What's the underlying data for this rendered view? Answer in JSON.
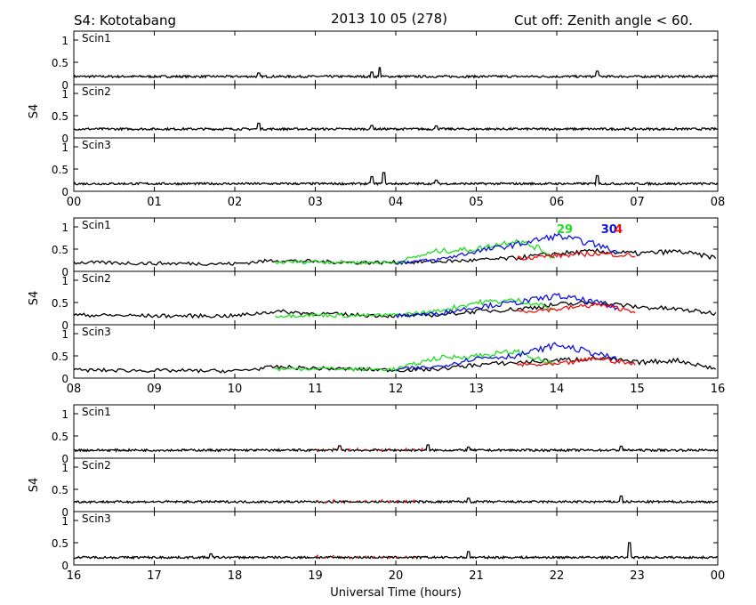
{
  "header": {
    "left": "S4: Kototabang",
    "center": "2013 10 05 (278)",
    "right": "Cut off: Zenith angle < 60."
  },
  "xlabel": "Universal Time (hours)",
  "ylabel": "S4",
  "colors": {
    "black": "#000000",
    "green": "#22dd22",
    "blue": "#1111dd",
    "red": "#ee1111",
    "purple": "#771199"
  },
  "chart_data": [
    {
      "type": "line",
      "group": 1,
      "x_ticks": [
        "00",
        "01",
        "02",
        "03",
        "04",
        "05",
        "06",
        "07",
        "08"
      ],
      "xlim": [
        0,
        8
      ],
      "panels": [
        {
          "label": "Scin1",
          "ylim": [
            0,
            1.2
          ],
          "y_ticks": [
            "1",
            "0.5",
            "0"
          ],
          "baseline": 0.18,
          "spikes": [
            [
              3.8,
              0.38
            ],
            [
              3.7,
              0.28
            ],
            [
              6.5,
              0.3
            ],
            [
              2.3,
              0.26
            ]
          ]
        },
        {
          "label": "Scin2",
          "ylim": [
            0,
            1.2
          ],
          "y_ticks": [
            "1",
            "0.5",
            "0"
          ],
          "baseline": 0.2,
          "spikes": [
            [
              2.3,
              0.33
            ],
            [
              3.7,
              0.28
            ],
            [
              4.5,
              0.27
            ]
          ]
        },
        {
          "label": "Scin3",
          "ylim": [
            0,
            1.2
          ],
          "y_ticks": [
            "1",
            "0.5",
            "0"
          ],
          "baseline": 0.17,
          "spikes": [
            [
              3.7,
              0.33
            ],
            [
              3.85,
              0.42
            ],
            [
              6.5,
              0.35
            ],
            [
              4.5,
              0.25
            ]
          ]
        }
      ]
    },
    {
      "type": "line",
      "group": 2,
      "x_ticks": [
        "08",
        "09",
        "10",
        "11",
        "12",
        "13",
        "14",
        "15",
        "16"
      ],
      "xlim": [
        8,
        16
      ],
      "annotations": [
        {
          "text": "29",
          "x": 14.0,
          "y": 0.92,
          "color": "green"
        },
        {
          "text": "30",
          "x": 14.55,
          "y": 0.92,
          "color": "blue"
        },
        {
          "text": "4",
          "x": 14.72,
          "y": 0.92,
          "color": "red"
        }
      ],
      "panels": [
        {
          "label": "Scin1",
          "ylim": [
            0,
            1.2
          ],
          "y_ticks": [
            "1",
            "0.5",
            "0"
          ],
          "series": [
            {
              "color": "black",
              "points": [
                [
                  8,
                  0.2
                ],
                [
                  9,
                  0.18
                ],
                [
                  10,
                  0.17
                ],
                [
                  10.5,
                  0.25
                ],
                [
                  11,
                  0.22
                ],
                [
                  11.5,
                  0.2
                ],
                [
                  12,
                  0.2
                ],
                [
                  12.5,
                  0.22
                ],
                [
                  13,
                  0.25
                ],
                [
                  13.5,
                  0.3
                ],
                [
                  14,
                  0.4
                ],
                [
                  14.5,
                  0.45
                ],
                [
                  15,
                  0.4
                ],
                [
                  15.5,
                  0.45
                ],
                [
                  16,
                  0.3
                ]
              ]
            },
            {
              "color": "green",
              "points": [
                [
                  10.5,
                  0.2
                ],
                [
                  11,
                  0.22
                ],
                [
                  11.5,
                  0.2
                ],
                [
                  12,
                  0.2
                ],
                [
                  12.5,
                  0.45
                ],
                [
                  13,
                  0.5
                ],
                [
                  13.5,
                  0.7
                ],
                [
                  13.8,
                  0.5
                ],
                [
                  14,
                  0.25
                ]
              ]
            },
            {
              "color": "blue",
              "points": [
                [
                  12,
                  0.2
                ],
                [
                  12.5,
                  0.25
                ],
                [
                  13,
                  0.45
                ],
                [
                  13.5,
                  0.6
                ],
                [
                  14,
                  0.8
                ],
                [
                  14.5,
                  0.6
                ],
                [
                  14.8,
                  0.4
                ]
              ]
            },
            {
              "color": "red",
              "points": [
                [
                  13.5,
                  0.3
                ],
                [
                  14,
                  0.35
                ],
                [
                  14.5,
                  0.4
                ],
                [
                  15,
                  0.35
                ]
              ]
            }
          ]
        },
        {
          "label": "Scin2",
          "ylim": [
            0,
            1.2
          ],
          "y_ticks": [
            "1",
            "0.5",
            "0"
          ],
          "series": [
            {
              "color": "black",
              "points": [
                [
                  8,
                  0.22
                ],
                [
                  9,
                  0.2
                ],
                [
                  10,
                  0.2
                ],
                [
                  10.5,
                  0.3
                ],
                [
                  11,
                  0.25
                ],
                [
                  11.5,
                  0.22
                ],
                [
                  12,
                  0.2
                ],
                [
                  12.5,
                  0.22
                ],
                [
                  13,
                  0.3
                ],
                [
                  13.5,
                  0.35
                ],
                [
                  14,
                  0.45
                ],
                [
                  14.5,
                  0.5
                ],
                [
                  15,
                  0.4
                ],
                [
                  15.5,
                  0.35
                ],
                [
                  16,
                  0.25
                ]
              ]
            },
            {
              "color": "green",
              "points": [
                [
                  10.5,
                  0.2
                ],
                [
                  11,
                  0.22
                ],
                [
                  11.5,
                  0.2
                ],
                [
                  12,
                  0.22
                ],
                [
                  12.5,
                  0.3
                ],
                [
                  13,
                  0.5
                ],
                [
                  13.5,
                  0.55
                ],
                [
                  13.8,
                  0.45
                ],
                [
                  14,
                  0.3
                ]
              ]
            },
            {
              "color": "blue",
              "points": [
                [
                  12,
                  0.2
                ],
                [
                  12.5,
                  0.25
                ],
                [
                  13,
                  0.4
                ],
                [
                  13.5,
                  0.5
                ],
                [
                  14,
                  0.65
                ],
                [
                  14.5,
                  0.5
                ],
                [
                  14.8,
                  0.35
                ]
              ]
            },
            {
              "color": "red",
              "points": [
                [
                  13.5,
                  0.3
                ],
                [
                  14,
                  0.35
                ],
                [
                  14.5,
                  0.45
                ],
                [
                  15,
                  0.3
                ]
              ]
            }
          ]
        },
        {
          "label": "Scin3",
          "ylim": [
            0,
            1.2
          ],
          "y_ticks": [
            "1",
            "0.5",
            "0"
          ],
          "series": [
            {
              "color": "black",
              "points": [
                [
                  8,
                  0.18
                ],
                [
                  9,
                  0.17
                ],
                [
                  10,
                  0.16
                ],
                [
                  10.5,
                  0.25
                ],
                [
                  11,
                  0.22
                ],
                [
                  11.5,
                  0.2
                ],
                [
                  12,
                  0.18
                ],
                [
                  12.5,
                  0.2
                ],
                [
                  13,
                  0.3
                ],
                [
                  13.5,
                  0.35
                ],
                [
                  14,
                  0.4
                ],
                [
                  14.5,
                  0.45
                ],
                [
                  15,
                  0.35
                ],
                [
                  15.5,
                  0.4
                ],
                [
                  16,
                  0.2
                ]
              ]
            },
            {
              "color": "green",
              "points": [
                [
                  10.5,
                  0.2
                ],
                [
                  11,
                  0.22
                ],
                [
                  11.5,
                  0.2
                ],
                [
                  12,
                  0.2
                ],
                [
                  12.5,
                  0.45
                ],
                [
                  13,
                  0.5
                ],
                [
                  13.5,
                  0.6
                ],
                [
                  13.8,
                  0.4
                ],
                [
                  14,
                  0.3
                ]
              ]
            },
            {
              "color": "blue",
              "points": [
                [
                  12,
                  0.2
                ],
                [
                  12.5,
                  0.25
                ],
                [
                  13,
                  0.45
                ],
                [
                  13.5,
                  0.5
                ],
                [
                  14,
                  0.75
                ],
                [
                  14.5,
                  0.55
                ],
                [
                  14.8,
                  0.4
                ]
              ]
            },
            {
              "color": "red",
              "points": [
                [
                  13.5,
                  0.3
                ],
                [
                  14,
                  0.3
                ],
                [
                  14.5,
                  0.45
                ],
                [
                  15,
                  0.3
                ]
              ]
            }
          ]
        }
      ]
    },
    {
      "type": "line",
      "group": 3,
      "x_ticks": [
        "16",
        "17",
        "18",
        "19",
        "20",
        "21",
        "22",
        "23",
        "00"
      ],
      "xlim": [
        16,
        24
      ],
      "panels": [
        {
          "label": "Scin1",
          "ylim": [
            0,
            1.2
          ],
          "y_ticks": [
            "1",
            "0.5",
            "0"
          ],
          "baseline": 0.18,
          "spikes": [
            [
              19.3,
              0.28
            ],
            [
              20.4,
              0.3
            ],
            [
              20.9,
              0.25
            ],
            [
              22.8,
              0.27
            ]
          ],
          "red_segments": [
            [
              19.0,
              20.4
            ]
          ]
        },
        {
          "label": "Scin2",
          "ylim": [
            0,
            1.2
          ],
          "y_ticks": [
            "1",
            "0.5",
            "0"
          ],
          "baseline": 0.22,
          "spikes": [
            [
              20.9,
              0.3
            ],
            [
              22.8,
              0.35
            ]
          ],
          "red_segments": [
            [
              19.0,
              20.3
            ]
          ]
        },
        {
          "label": "Scin3",
          "ylim": [
            0,
            1.2
          ],
          "y_ticks": [
            "1",
            "0.5",
            "0"
          ],
          "baseline": 0.17,
          "spikes": [
            [
              20.9,
              0.3
            ],
            [
              22.9,
              0.5
            ],
            [
              17.7,
              0.25
            ]
          ],
          "red_segments": [
            [
              19.0,
              20.3
            ]
          ]
        }
      ]
    }
  ]
}
